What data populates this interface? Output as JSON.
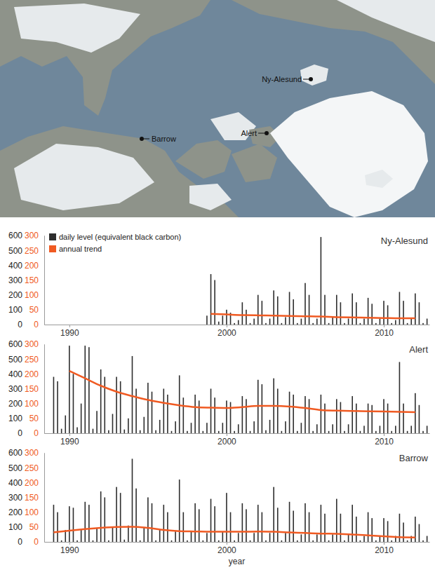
{
  "map": {
    "stations": [
      "Ny-Alesund",
      "Alert",
      "Barrow"
    ]
  },
  "chart_data": [
    {
      "type": "bar",
      "title": "Ny-Alesund",
      "legend": "upper left",
      "xlim": [
        1988.4,
        2012.9
      ],
      "xticks": [
        1990,
        2000,
        2010
      ],
      "ylim": [
        0,
        600
      ],
      "yticks": [
        0,
        100,
        200,
        300,
        400,
        500,
        600
      ],
      "y2lim": [
        0,
        300
      ],
      "y2ticks": [
        0,
        50,
        100,
        150,
        200,
        250,
        300
      ],
      "series": [
        {
          "name": "daily level (equivalent black carbon)",
          "type": "bar",
          "color": "#2e2e2e",
          "x": [
            1998.75,
            1999,
            1999.25,
            1999.5,
            1999.75,
            2000,
            2000.25,
            2000.5,
            2000.75,
            2001,
            2001.25,
            2001.5,
            2001.75,
            2002,
            2002.25,
            2002.5,
            2002.75,
            2003,
            2003.25,
            2003.5,
            2003.75,
            2004,
            2004.25,
            2004.5,
            2004.75,
            2005,
            2005.25,
            2005.5,
            2005.75,
            2006,
            2006.25,
            2006.5,
            2006.75,
            2007,
            2007.25,
            2007.5,
            2007.75,
            2008,
            2008.25,
            2008.5,
            2008.75,
            2009,
            2009.25,
            2009.5,
            2009.75,
            2010,
            2010.25,
            2010.5,
            2010.75,
            2011,
            2011.25,
            2011.5,
            2011.75,
            2012,
            2012.25,
            2012.5,
            2012.75
          ],
          "values": [
            60,
            340,
            300,
            20,
            60,
            100,
            80,
            10,
            30,
            150,
            100,
            10,
            40,
            200,
            160,
            10,
            40,
            230,
            190,
            10,
            50,
            220,
            170,
            10,
            40,
            280,
            200,
            10,
            40,
            590,
            200,
            10,
            50,
            200,
            150,
            10,
            40,
            210,
            150,
            10,
            40,
            180,
            140,
            10,
            40,
            160,
            130,
            10,
            30,
            220,
            160,
            10,
            40,
            210,
            150,
            10,
            40
          ]
        },
        {
          "name": "annual trend",
          "type": "line",
          "color": "#f05a22",
          "axis": "y2",
          "x": [
            1999,
            2000,
            2001,
            2002,
            2003,
            2004,
            2005,
            2006,
            2007,
            2008,
            2009,
            2010,
            2011,
            2012
          ],
          "values": [
            36,
            34,
            32,
            31,
            30,
            29,
            28,
            27,
            25,
            24,
            23,
            22,
            21,
            21
          ]
        }
      ]
    },
    {
      "type": "bar",
      "title": "Alert",
      "xlim": [
        1988.4,
        2012.9
      ],
      "xticks": [
        1990,
        2000,
        2010
      ],
      "ylim": [
        0,
        600
      ],
      "yticks": [
        0,
        100,
        200,
        300,
        400,
        500,
        600
      ],
      "y2lim": [
        0,
        300
      ],
      "y2ticks": [
        0,
        50,
        100,
        150,
        200,
        250,
        300
      ],
      "series": [
        {
          "type": "bar",
          "color": "#2e2e2e",
          "x": [
            1989,
            1989.25,
            1989.5,
            1989.75,
            1990,
            1990.25,
            1990.5,
            1990.75,
            1991,
            1991.25,
            1991.5,
            1991.75,
            1992,
            1992.25,
            1992.5,
            1992.75,
            1993,
            1993.25,
            1993.5,
            1993.75,
            1994,
            1994.25,
            1994.5,
            1994.75,
            1995,
            1995.25,
            1995.5,
            1995.75,
            1996,
            1996.25,
            1996.5,
            1996.75,
            1997,
            1997.25,
            1997.5,
            1997.75,
            1998,
            1998.25,
            1998.5,
            1998.75,
            1999,
            1999.25,
            1999.5,
            1999.75,
            2000,
            2000.25,
            2000.5,
            2000.75,
            2001,
            2001.25,
            2001.5,
            2001.75,
            2002,
            2002.25,
            2002.5,
            2002.75,
            2003,
            2003.25,
            2003.5,
            2003.75,
            2004,
            2004.25,
            2004.5,
            2004.75,
            2005,
            2005.25,
            2005.5,
            2005.75,
            2006,
            2006.25,
            2006.5,
            2006.75,
            2007,
            2007.25,
            2007.5,
            2007.75,
            2008,
            2008.25,
            2008.5,
            2008.75,
            2009,
            2009.25,
            2009.5,
            2009.75,
            2010,
            2010.25,
            2010.5,
            2010.75,
            2011,
            2011.25,
            2011.5,
            2011.75,
            2012,
            2012.25,
            2012.5,
            2012.75
          ],
          "values": [
            380,
            350,
            30,
            120,
            590,
            400,
            40,
            200,
            590,
            580,
            30,
            150,
            430,
            380,
            20,
            130,
            380,
            350,
            25,
            100,
            520,
            300,
            20,
            110,
            340,
            280,
            20,
            90,
            300,
            260,
            15,
            80,
            390,
            240,
            15,
            70,
            260,
            220,
            15,
            70,
            300,
            240,
            15,
            70,
            220,
            210,
            15,
            60,
            250,
            230,
            15,
            80,
            360,
            330,
            20,
            90,
            370,
            300,
            15,
            80,
            280,
            260,
            15,
            70,
            250,
            230,
            15,
            60,
            260,
            200,
            15,
            60,
            230,
            210,
            15,
            60,
            250,
            200,
            15,
            50,
            200,
            190,
            15,
            50,
            230,
            200,
            15,
            50,
            480,
            200,
            15,
            50,
            270,
            190,
            15,
            50
          ]
        },
        {
          "type": "line",
          "color": "#f05a22",
          "axis": "y2",
          "x": [
            1990,
            1991,
            1992,
            1993,
            1994,
            1995,
            1996,
            1997,
            1998,
            1999,
            2000,
            2001,
            2002,
            2003,
            2004,
            2005,
            2006,
            2007,
            2008,
            2009,
            2010,
            2011,
            2012
          ],
          "values": [
            210,
            185,
            160,
            140,
            125,
            112,
            102,
            94,
            88,
            86,
            85,
            88,
            92,
            92,
            90,
            85,
            78,
            76,
            75,
            74,
            73,
            72,
            71
          ]
        }
      ]
    },
    {
      "type": "bar",
      "title": "Barrow",
      "x_label": "year",
      "xlim": [
        1988.4,
        2012.9
      ],
      "xticks": [
        1990,
        2000,
        2010
      ],
      "ylim": [
        0,
        600
      ],
      "yticks": [
        0,
        100,
        200,
        300,
        400,
        500,
        600
      ],
      "y2lim": [
        0,
        300
      ],
      "y2ticks": [
        0,
        50,
        100,
        150,
        200,
        250,
        300
      ],
      "series": [
        {
          "type": "bar",
          "color": "#2e2e2e",
          "x": [
            1989,
            1989.25,
            1989.5,
            1989.75,
            1990,
            1990.25,
            1990.5,
            1990.75,
            1991,
            1991.25,
            1991.5,
            1991.75,
            1992,
            1992.25,
            1992.5,
            1992.75,
            1993,
            1993.25,
            1993.5,
            1993.75,
            1994,
            1994.25,
            1994.5,
            1994.75,
            1995,
            1995.25,
            1995.5,
            1995.75,
            1996,
            1996.25,
            1996.5,
            1996.75,
            1997,
            1997.25,
            1997.5,
            1997.75,
            1998,
            1998.25,
            1998.5,
            1998.75,
            1999,
            1999.25,
            1999.5,
            1999.75,
            2000,
            2000.25,
            2000.5,
            2000.75,
            2001,
            2001.25,
            2001.5,
            2001.75,
            2002,
            2002.25,
            2002.5,
            2002.75,
            2003,
            2003.25,
            2003.5,
            2003.75,
            2004,
            2004.25,
            2004.5,
            2004.75,
            2005,
            2005.25,
            2005.5,
            2005.75,
            2006,
            2006.25,
            2006.5,
            2006.75,
            2007,
            2007.25,
            2007.5,
            2007.75,
            2008,
            2008.25,
            2008.5,
            2008.75,
            2009,
            2009.25,
            2009.5,
            2009.75,
            2010,
            2010.25,
            2010.5,
            2010.75,
            2011,
            2011.25,
            2011.5,
            2011.75,
            2012,
            2012.25,
            2012.5,
            2012.75
          ],
          "values": [
            250,
            200,
            10,
            80,
            240,
            230,
            10,
            80,
            270,
            250,
            10,
            90,
            340,
            300,
            10,
            100,
            370,
            330,
            15,
            110,
            560,
            360,
            10,
            100,
            300,
            260,
            10,
            80,
            250,
            200,
            10,
            70,
            420,
            200,
            10,
            70,
            260,
            220,
            10,
            60,
            290,
            240,
            10,
            70,
            330,
            200,
            10,
            60,
            260,
            220,
            10,
            60,
            250,
            200,
            10,
            60,
            370,
            230,
            10,
            60,
            270,
            210,
            10,
            50,
            260,
            200,
            10,
            50,
            250,
            190,
            10,
            50,
            290,
            190,
            10,
            50,
            250,
            170,
            10,
            40,
            200,
            160,
            10,
            40,
            160,
            140,
            10,
            40,
            190,
            130,
            10,
            40,
            170,
            120,
            10,
            40
          ]
        },
        {
          "type": "line",
          "color": "#f05a22",
          "axis": "y2",
          "x": [
            1989,
            1990,
            1991,
            1992,
            1993,
            1994,
            1995,
            1996,
            1997,
            1998,
            1999,
            2000,
            2001,
            2002,
            2003,
            2004,
            2005,
            2006,
            2007,
            2008,
            2009,
            2010,
            2011,
            2012
          ],
          "values": [
            32,
            38,
            43,
            47,
            50,
            51,
            47,
            40,
            36,
            35,
            34,
            34,
            34,
            35,
            34,
            32,
            30,
            28,
            27,
            25,
            22,
            19,
            16,
            15
          ]
        }
      ]
    }
  ]
}
